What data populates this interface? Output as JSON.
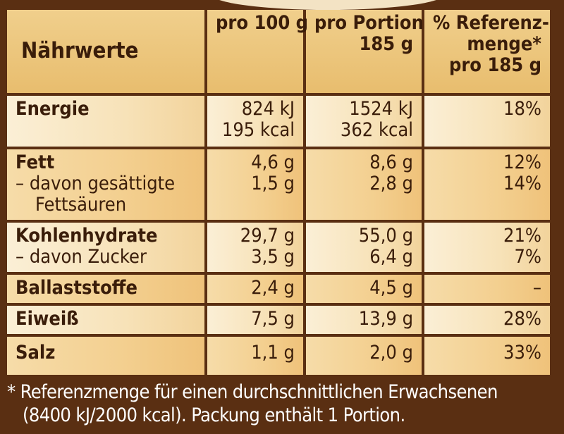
{
  "header": {
    "label": "Nährwerte",
    "col1": "pro 100 g",
    "col2": [
      "pro Portion",
      "185 g"
    ],
    "col3": [
      "% Referenz-",
      "menge*",
      "pro 185 g"
    ]
  },
  "rows": [
    {
      "label": [
        "Energie"
      ],
      "per100": [
        "824 kJ",
        "195 kcal"
      ],
      "portion": [
        "1524 kJ",
        "362 kcal"
      ],
      "ref": [
        "18%"
      ]
    },
    {
      "label": [
        "Fett",
        "– davon gesättigte",
        "Fettsäuren"
      ],
      "per100": [
        "4,6 g",
        "1,5 g"
      ],
      "portion": [
        "8,6 g",
        "2,8 g"
      ],
      "ref": [
        "12%",
        "14%"
      ]
    },
    {
      "label": [
        "Kohlenhydrate",
        "– davon Zucker"
      ],
      "per100": [
        "29,7 g",
        "3,5 g"
      ],
      "portion": [
        "55,0 g",
        "6,4 g"
      ],
      "ref": [
        "21%",
        "7%"
      ]
    },
    {
      "label": [
        "Ballaststoffe"
      ],
      "per100": [
        "2,4 g"
      ],
      "portion": [
        "4,5 g"
      ],
      "ref": [
        "–"
      ]
    },
    {
      "label": [
        "Eiweiß"
      ],
      "per100": [
        "7,5 g"
      ],
      "portion": [
        "13,9 g"
      ],
      "ref": [
        "28%"
      ]
    },
    {
      "label": [
        "Salz"
      ],
      "per100": [
        "1,1 g"
      ],
      "portion": [
        "2,0 g"
      ],
      "ref": [
        "33%"
      ]
    }
  ],
  "footnote": {
    "line1": "* Referenzmenge für einen durchschnittlichen Erwachsenen",
    "line2": "(8400 kJ/2000 kcal). Packung enthält 1 Portion."
  },
  "colors": {
    "border": "#5a2f12",
    "header": "#e8bd6e",
    "cell": "#f7e2b8",
    "text": "#3a1d0a"
  }
}
